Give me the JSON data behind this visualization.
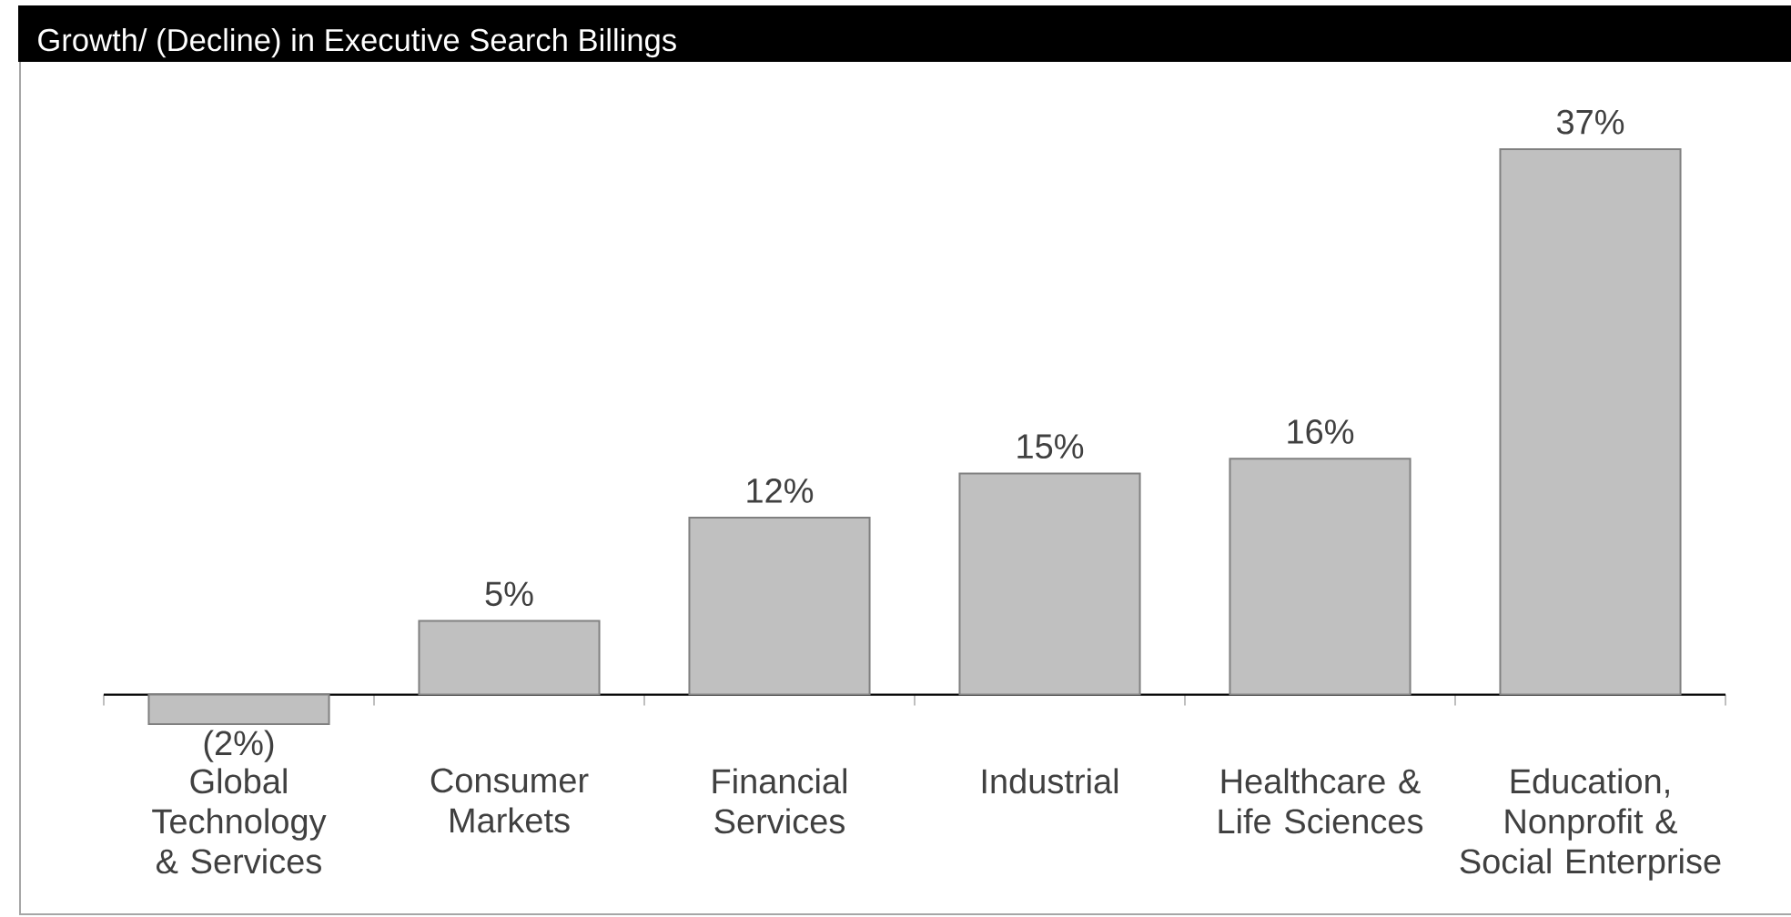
{
  "chart_data": {
    "type": "bar",
    "title": "Growth/ (Decline) in Executive Search Billings",
    "categories": [
      "Global Technology & Services",
      "Consumer Markets",
      "Financial Services",
      "Industrial",
      "Healthcare & Life Sciences",
      "Education, Nonprofit & Social Enterprise"
    ],
    "values": [
      -2,
      5,
      12,
      15,
      16,
      37
    ],
    "value_labels": [
      "(2%)",
      "5%",
      "12%",
      "15%",
      "16%",
      "37%"
    ],
    "color": "#c0c0c0"
  }
}
